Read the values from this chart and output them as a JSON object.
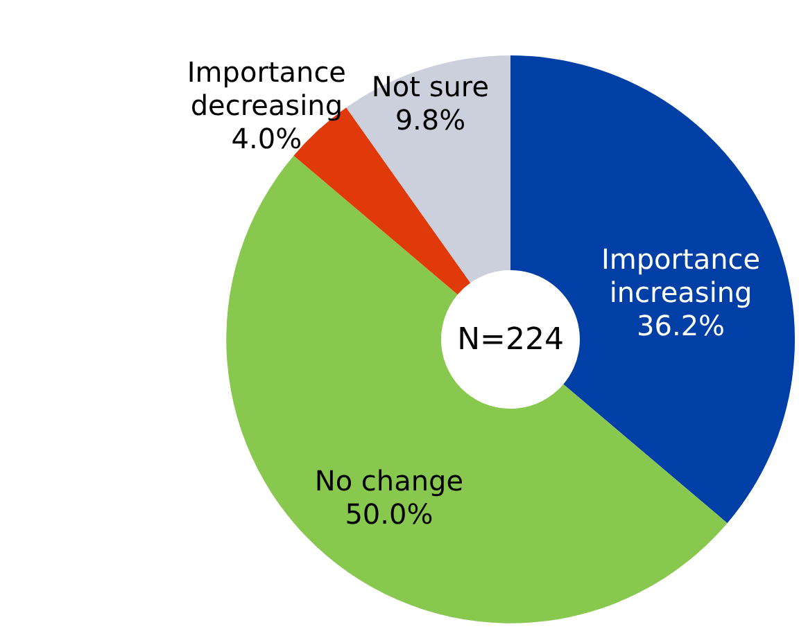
{
  "chart_data": {
    "type": "donut",
    "categories": [
      "Importance increasing",
      "No change",
      "Importance decreasing",
      "Not sure"
    ],
    "values": [
      36.2,
      50.0,
      4.0,
      9.8
    ],
    "value_labels": [
      "36.2%",
      "50.0%",
      "4.0%",
      "9.8%"
    ],
    "colors": [
      "#003fa5",
      "#88c84f",
      "#e03a0a",
      "#ccd0dc"
    ],
    "annotations": [
      "N=224"
    ],
    "legend": false
  }
}
